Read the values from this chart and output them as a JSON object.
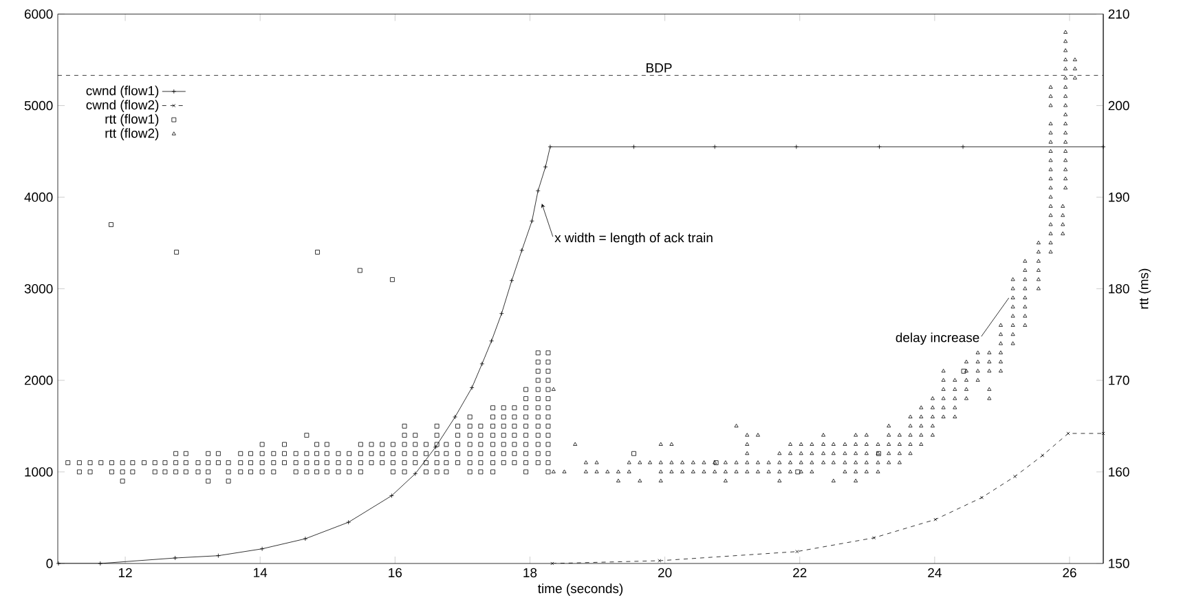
{
  "chart_data": {
    "type": "line",
    "xlabel": "time (seconds)",
    "y2label": "rtt (ms)",
    "xlim": [
      11,
      26.5
    ],
    "xticks": [
      12,
      14,
      16,
      18,
      20,
      22,
      24,
      26
    ],
    "ylim": [
      0,
      6000
    ],
    "yticks": [
      0,
      1000,
      2000,
      3000,
      4000,
      5000,
      6000
    ],
    "y2lim": [
      150,
      210
    ],
    "y2ticks": [
      150,
      160,
      170,
      180,
      190,
      200,
      210
    ],
    "legend": "top left",
    "ref_lines": [
      {
        "axis": "y",
        "value": 5330,
        "label": "BDP",
        "line_style": "dashed",
        "color": "#000000"
      }
    ],
    "annotations": [
      "x width = length of ack train",
      {
        "text": "delay increase",
        "x": 25.1,
        "y": 2900
      }
    ],
    "series": [
      {
        "name": "cwnd (flow1)",
        "color": "#000000",
        "marker": "plus",
        "line_style": "solid",
        "x": [
          11.01,
          11.63,
          12.74,
          13.38,
          14.03,
          14.67,
          15.31,
          15.95,
          16.3,
          16.6,
          16.89,
          17.14,
          17.29,
          17.43,
          17.58,
          17.73,
          17.88,
          18.03,
          18.12,
          18.23,
          18.3,
          19.54,
          20.74,
          21.95,
          23.18,
          24.42,
          26.5
        ],
        "values": [
          0,
          0,
          60,
          85,
          160,
          270,
          450,
          740,
          980,
          1270,
          1600,
          1920,
          2180,
          2430,
          2730,
          3090,
          3420,
          3740,
          4070,
          4330,
          4550,
          4550,
          4550,
          4550,
          4550,
          4550,
          4550
        ]
      },
      {
        "name": "cwnd (flow2)",
        "color": "#000000",
        "marker": "cross",
        "line_style": "dashed",
        "x": [
          18.33,
          19.92,
          21.96,
          23.1,
          24.01,
          24.7,
          25.19,
          25.6,
          25.98,
          26.5
        ],
        "values": [
          0,
          30,
          130,
          280,
          480,
          720,
          950,
          1180,
          1420,
          1420
        ]
      },
      {
        "name": "rtt (flow1)",
        "color": "#000000",
        "type": "scatter",
        "marker": "square",
        "axis": "y2",
        "x": [
          11.15,
          11.32,
          11.32,
          11.48,
          11.48,
          11.64,
          11.79,
          11.8,
          11.8,
          11.96,
          11.96,
          11.96,
          12.11,
          12.11,
          12.28,
          12.44,
          12.44,
          12.59,
          12.59,
          12.75,
          12.75,
          12.75,
          12.76,
          12.9,
          12.9,
          12.9,
          13.08,
          13.08,
          13.23,
          13.23,
          13.23,
          13.23,
          13.38,
          13.38,
          13.53,
          13.53,
          13.53,
          13.71,
          13.71,
          13.71,
          13.86,
          13.86,
          13.86,
          14.03,
          14.03,
          14.03,
          14.03,
          14.2,
          14.2,
          14.2,
          14.36,
          14.36,
          14.36,
          14.53,
          14.53,
          14.53,
          14.69,
          14.69,
          14.69,
          14.69,
          14.84,
          14.84,
          14.84,
          14.84,
          14.85,
          14.99,
          14.99,
          14.99,
          14.99,
          15.16,
          15.16,
          15.16,
          15.32,
          15.32,
          15.32,
          15.48,
          15.49,
          15.49,
          15.49,
          15.49,
          15.65,
          15.65,
          15.65,
          15.81,
          15.81,
          15.81,
          15.96,
          15.97,
          15.97,
          15.97,
          15.97,
          16.14,
          16.14,
          16.14,
          16.14,
          16.14,
          16.14,
          16.3,
          16.3,
          16.3,
          16.3,
          16.46,
          16.46,
          16.46,
          16.46,
          16.62,
          16.62,
          16.62,
          16.62,
          16.62,
          16.62,
          16.76,
          16.76,
          16.76,
          16.76,
          16.93,
          16.93,
          16.93,
          16.93,
          16.93,
          17.11,
          17.11,
          17.11,
          17.11,
          17.11,
          17.11,
          17.11,
          17.27,
          17.27,
          17.27,
          17.27,
          17.27,
          17.27,
          17.45,
          17.45,
          17.45,
          17.45,
          17.45,
          17.45,
          17.45,
          17.45,
          17.61,
          17.61,
          17.61,
          17.61,
          17.61,
          17.61,
          17.61,
          17.77,
          17.77,
          17.77,
          17.77,
          17.77,
          17.77,
          17.77,
          17.94,
          17.94,
          17.94,
          17.94,
          17.94,
          17.94,
          17.94,
          17.94,
          17.94,
          17.94,
          18.12,
          18.12,
          18.12,
          18.12,
          18.12,
          18.12,
          18.12,
          18.12,
          18.12,
          18.12,
          18.12,
          18.12,
          18.12,
          18.27,
          18.27,
          18.27,
          18.27,
          18.27,
          18.27,
          18.27,
          18.27,
          18.27,
          18.27,
          18.27,
          18.27,
          18.27,
          18.27,
          19.54,
          20.76,
          21.97,
          23.17,
          24.43
        ],
        "values": [
          161,
          161,
          160,
          161,
          160,
          161,
          187,
          161,
          160,
          161,
          160,
          159,
          161,
          160,
          161,
          161,
          160,
          161,
          160,
          162,
          161,
          160,
          184,
          162,
          161,
          160,
          161,
          160,
          162,
          161,
          160,
          159,
          162,
          161,
          161,
          160,
          159,
          162,
          161,
          160,
          162,
          161,
          160,
          163,
          162,
          161,
          160,
          162,
          161,
          160,
          163,
          162,
          161,
          162,
          161,
          160,
          164,
          162,
          161,
          160,
          163,
          162,
          161,
          160,
          184,
          163,
          162,
          161,
          160,
          162,
          161,
          160,
          162,
          161,
          160,
          182,
          163,
          162,
          161,
          160,
          163,
          162,
          161,
          163,
          162,
          161,
          181,
          163,
          162,
          161,
          160,
          165,
          164,
          163,
          162,
          161,
          160,
          164,
          163,
          162,
          161,
          163,
          162,
          161,
          160,
          165,
          164,
          163,
          162,
          161,
          160,
          163,
          162,
          161,
          160,
          165,
          164,
          163,
          162,
          161,
          166,
          165,
          164,
          163,
          162,
          161,
          160,
          165,
          164,
          163,
          162,
          161,
          160,
          167,
          166,
          165,
          164,
          163,
          162,
          161,
          160,
          167,
          166,
          165,
          164,
          163,
          162,
          161,
          167,
          166,
          165,
          164,
          163,
          162,
          161,
          169,
          168,
          167,
          166,
          165,
          164,
          163,
          162,
          161,
          160,
          173,
          172,
          171,
          170,
          169,
          168,
          167,
          166,
          165,
          164,
          163,
          162,
          161,
          173,
          172,
          171,
          170,
          169,
          168,
          167,
          166,
          165,
          164,
          163,
          162,
          161,
          160,
          162,
          161,
          160,
          162,
          171
        ]
      },
      {
        "name": "rtt (flow2)",
        "color": "#000000",
        "type": "scatter",
        "marker": "triangle",
        "axis": "y2",
        "x": [
          18.35,
          18.35,
          18.51,
          18.67,
          18.83,
          18.83,
          18.99,
          18.99,
          19.15,
          19.31,
          19.31,
          19.47,
          19.47,
          19.63,
          19.63,
          19.78,
          19.94,
          19.94,
          19.94,
          19.94,
          20.1,
          20.1,
          20.1,
          20.26,
          20.26,
          20.42,
          20.42,
          20.58,
          20.58,
          20.74,
          20.74,
          20.9,
          20.9,
          20.9,
          21.06,
          21.06,
          21.06,
          21.22,
          21.22,
          21.22,
          21.22,
          21.22,
          21.38,
          21.38,
          21.38,
          21.54,
          21.54,
          21.7,
          21.7,
          21.7,
          21.7,
          21.86,
          21.86,
          21.86,
          21.86,
          22.02,
          22.02,
          22.02,
          22.02,
          22.18,
          22.18,
          22.18,
          22.18,
          22.35,
          22.35,
          22.35,
          22.35,
          22.5,
          22.5,
          22.5,
          22.5,
          22.67,
          22.67,
          22.67,
          22.67,
          22.83,
          22.83,
          22.83,
          22.83,
          22.83,
          22.83,
          22.99,
          22.99,
          22.99,
          22.99,
          22.99,
          23.16,
          23.16,
          23.16,
          23.16,
          23.32,
          23.32,
          23.32,
          23.32,
          23.32,
          23.48,
          23.48,
          23.48,
          23.48,
          23.64,
          23.64,
          23.64,
          23.64,
          23.64,
          23.8,
          23.8,
          23.8,
          23.8,
          23.8,
          23.97,
          23.97,
          23.97,
          23.97,
          23.97,
          24.13,
          24.13,
          24.13,
          24.13,
          24.13,
          24.13,
          24.3,
          24.3,
          24.3,
          24.3,
          24.3,
          24.47,
          24.47,
          24.47,
          24.47,
          24.47,
          24.64,
          24.64,
          24.64,
          24.64,
          24.81,
          24.81,
          24.81,
          24.81,
          24.81,
          24.98,
          24.98,
          24.98,
          24.98,
          24.98,
          24.98,
          25.16,
          25.16,
          25.16,
          25.16,
          25.16,
          25.16,
          25.16,
          25.16,
          25.34,
          25.34,
          25.34,
          25.34,
          25.34,
          25.34,
          25.34,
          25.34,
          25.54,
          25.54,
          25.54,
          25.54,
          25.54,
          25.54,
          25.72,
          25.72,
          25.72,
          25.72,
          25.72,
          25.72,
          25.72,
          25.72,
          25.72,
          25.72,
          25.72,
          25.72,
          25.72,
          25.72,
          25.72,
          25.72,
          25.72,
          25.72,
          25.9,
          25.9,
          25.9,
          25.9,
          25.94,
          25.94,
          25.94,
          25.94,
          25.94,
          25.94,
          25.94,
          25.94,
          25.94,
          25.94,
          25.94,
          25.94,
          25.94,
          25.94,
          25.94,
          25.94,
          25.94,
          25.94,
          26.08,
          26.08,
          26.08
        ],
        "values": [
          169,
          160,
          160,
          163,
          161,
          160,
          161,
          160,
          160,
          160,
          159,
          161,
          160,
          161,
          159,
          161,
          163,
          161,
          160,
          159,
          163,
          161,
          160,
          161,
          160,
          161,
          160,
          161,
          160,
          161,
          160,
          161,
          160,
          159,
          165,
          161,
          160,
          164,
          163,
          162,
          161,
          160,
          164,
          161,
          160,
          161,
          160,
          162,
          161,
          160,
          159,
          163,
          162,
          161,
          160,
          163,
          162,
          161,
          160,
          163,
          162,
          161,
          160,
          164,
          163,
          162,
          161,
          163,
          162,
          161,
          159,
          163,
          162,
          161,
          160,
          164,
          163,
          162,
          161,
          160,
          159,
          164,
          163,
          162,
          161,
          160,
          163,
          162,
          161,
          160,
          165,
          164,
          163,
          162,
          161,
          164,
          163,
          162,
          161,
          166,
          165,
          164,
          163,
          162,
          167,
          166,
          165,
          164,
          163,
          168,
          167,
          166,
          165,
          164,
          171,
          170,
          169,
          168,
          167,
          166,
          170,
          169,
          168,
          167,
          166,
          172,
          171,
          170,
          169,
          168,
          173,
          172,
          171,
          170,
          173,
          172,
          171,
          169,
          168,
          176,
          175,
          174,
          173,
          172,
          171,
          181,
          180,
          179,
          178,
          177,
          176,
          175,
          174,
          183,
          182,
          181,
          180,
          179,
          178,
          177,
          176,
          185,
          184,
          183,
          182,
          181,
          180,
          202,
          201,
          200,
          198,
          197,
          196,
          195,
          194,
          193,
          192,
          191,
          190,
          189,
          188,
          187,
          186,
          185,
          184,
          189,
          188,
          187,
          186,
          208,
          207,
          206,
          205,
          204,
          203,
          202,
          201,
          200,
          199,
          198,
          197,
          196,
          195,
          194,
          193,
          192,
          191,
          205,
          204,
          203
        ]
      }
    ]
  }
}
